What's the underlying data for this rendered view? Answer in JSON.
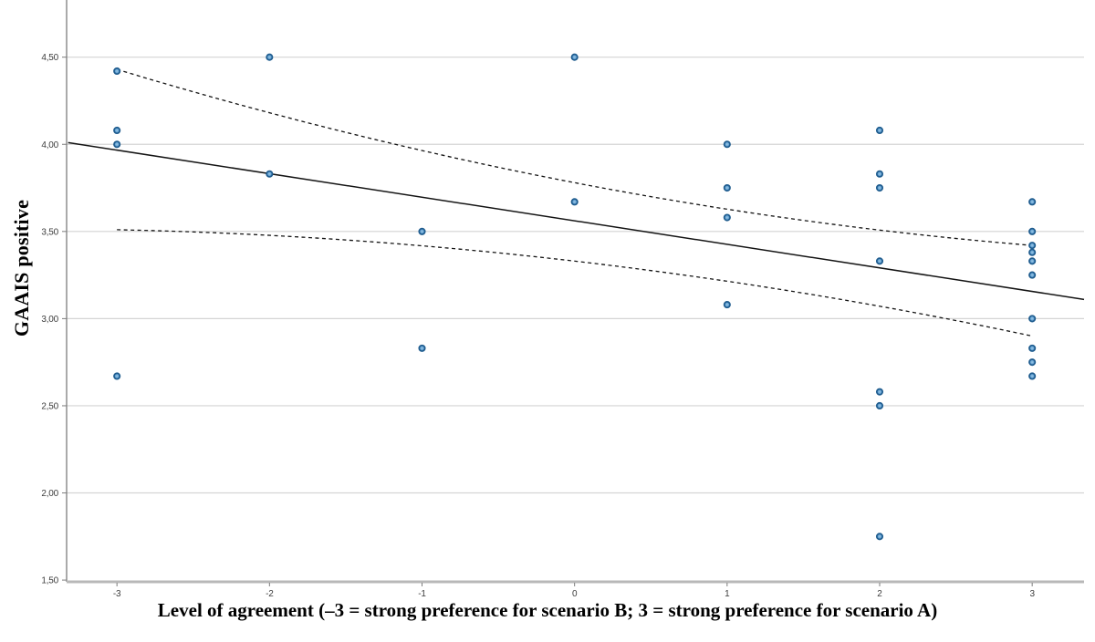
{
  "chart_data": {
    "type": "scatter",
    "title": "",
    "xlabel": "Level of agreement (–3 = strong preference for scenario B; 3 = strong preference for scenario A)",
    "ylabel": "GAAIS positive",
    "xlim": [
      -3.33,
      3.34
    ],
    "ylim": [
      1.49,
      4.828
    ],
    "grid": "horizontal-only",
    "x_ticks": [
      {
        "v": -3,
        "label": "-3"
      },
      {
        "v": -2,
        "label": "-2"
      },
      {
        "v": -1,
        "label": "-1"
      },
      {
        "v": 0,
        "label": "0"
      },
      {
        "v": 1,
        "label": "1"
      },
      {
        "v": 2,
        "label": "2"
      },
      {
        "v": 3,
        "label": "3"
      }
    ],
    "y_ticks": [
      {
        "v": 4.5,
        "label": "4,50"
      },
      {
        "v": 4.0,
        "label": "4,00"
      },
      {
        "v": 3.5,
        "label": "3,50"
      },
      {
        "v": 3.0,
        "label": "3,00"
      },
      {
        "v": 2.5,
        "label": "2,50"
      },
      {
        "v": 2.0,
        "label": "2,00"
      },
      {
        "v": 1.5,
        "label": "1,50"
      }
    ],
    "points": [
      [
        -3,
        4.42
      ],
      [
        -3,
        4.08
      ],
      [
        -3,
        4.0
      ],
      [
        -3,
        2.67
      ],
      [
        -2,
        4.5
      ],
      [
        -2,
        3.83
      ],
      [
        -1,
        3.5
      ],
      [
        -1,
        2.83
      ],
      [
        0,
        4.5
      ],
      [
        0,
        3.67
      ],
      [
        1,
        4.0
      ],
      [
        1,
        3.75
      ],
      [
        1,
        3.58
      ],
      [
        1,
        3.08
      ],
      [
        2,
        4.08
      ],
      [
        2,
        3.83
      ],
      [
        2,
        3.75
      ],
      [
        2,
        3.33
      ],
      [
        2,
        2.58
      ],
      [
        2,
        2.5
      ],
      [
        2,
        1.75
      ],
      [
        3,
        3.67
      ],
      [
        3,
        3.5
      ],
      [
        3,
        3.42
      ],
      [
        3,
        3.38
      ],
      [
        3,
        3.33
      ],
      [
        3,
        3.25
      ],
      [
        3,
        3.0
      ],
      [
        3,
        2.83
      ],
      [
        3,
        2.75
      ],
      [
        3,
        2.67
      ]
    ],
    "regression_line": {
      "x1": -3.32,
      "y1": 4.01,
      "x2": 3.34,
      "y2": 3.11
    },
    "ci_upper": [
      [
        -3,
        4.43
      ],
      [
        0,
        3.78
      ],
      [
        3,
        3.42
      ]
    ],
    "ci_lower": [
      [
        -3,
        3.51
      ],
      [
        0,
        3.33
      ],
      [
        3,
        2.9
      ]
    ],
    "colors": {
      "marker_fill": "#5b9bd0",
      "marker_center": "#9ec9e4",
      "marker_stroke": "#1f5c8e",
      "line": "#141414",
      "ci_line": "#141414",
      "gridline": "#d4d4d4",
      "y_axis_line": "#7d7d7d",
      "x_axis_line": "#b8b8b8",
      "tick_label": "#3d3d3d"
    }
  }
}
